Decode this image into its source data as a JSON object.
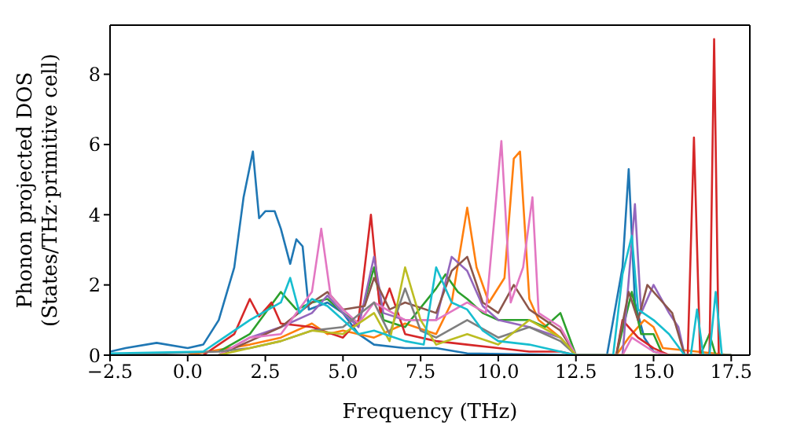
{
  "chart_data": {
    "type": "line",
    "xlabel": "Frequency (THz)",
    "ylabel": "Phonon projected DOS\n(States/THz·primitive cell)",
    "xlim": [
      -2.5,
      18.1
    ],
    "xticks": [
      {
        "value": -2.5,
        "label": "−2.5"
      },
      {
        "value": 0,
        "label": "0.0"
      },
      {
        "value": 2.5,
        "label": "2.5"
      },
      {
        "value": 5,
        "label": "5.0"
      },
      {
        "value": 7.5,
        "label": "7.5"
      },
      {
        "value": 10,
        "label": "10.0"
      },
      {
        "value": 12.5,
        "label": "12.5"
      },
      {
        "value": 15,
        "label": "15.0"
      },
      {
        "value": 17.5,
        "label": "17.5"
      }
    ],
    "ylim": [
      0,
      9.4
    ],
    "yticks": [
      0,
      2,
      4,
      6,
      8
    ],
    "marker": "none",
    "line_style": "solid",
    "series": [
      {
        "color": "#1f77b4",
        "x": [
          -2.5,
          -2,
          -1,
          0,
          0.5,
          1,
          1.5,
          1.8,
          2.1,
          2.3,
          2.5,
          2.8,
          3,
          3.3,
          3.5,
          3.7,
          3.9,
          4.5,
          5,
          5.5,
          6,
          7,
          8,
          9,
          12.5,
          13.5,
          13.8,
          14,
          14.2,
          14.4,
          14.7,
          15,
          15.5,
          17.5
        ],
        "values": [
          0.1,
          0.2,
          0.35,
          0.2,
          0.3,
          1.0,
          2.5,
          4.5,
          5.8,
          3.9,
          4.1,
          4.1,
          3.6,
          2.6,
          3.3,
          3.1,
          1.3,
          1.5,
          1.2,
          0.6,
          0.3,
          0.2,
          0.2,
          0.05,
          0,
          0,
          1.5,
          2.5,
          5.3,
          1.5,
          0.5,
          0.1,
          0,
          0
        ]
      },
      {
        "color": "#ff7f0e",
        "x": [
          0,
          2,
          3,
          4,
          4.5,
          5,
          6,
          7,
          8,
          8.5,
          9,
          9.3,
          9.7,
          10.2,
          10.5,
          10.7,
          11,
          11.3,
          12,
          12.5,
          13.8,
          14.2,
          14.7,
          15,
          15.3,
          17.5
        ],
        "values": [
          0,
          0.3,
          0.5,
          0.9,
          0.6,
          0.7,
          0.5,
          0.9,
          0.6,
          1.5,
          4.2,
          2.5,
          1.5,
          2.2,
          5.6,
          5.8,
          1.6,
          1.0,
          0.5,
          0,
          0,
          0.5,
          1.0,
          0.8,
          0.2,
          0
        ]
      },
      {
        "color": "#2ca02c",
        "x": [
          1,
          2,
          3,
          3.5,
          4,
          4.5,
          5,
          5.5,
          6,
          6.3,
          7,
          8,
          8.3,
          8.7,
          9,
          9.5,
          10,
          11,
          11.5,
          12,
          12.5,
          13.8,
          14.3,
          14.6,
          15,
          15.3,
          16.5,
          16.8,
          17
        ],
        "values": [
          0.1,
          0.6,
          1.8,
          1.3,
          1.5,
          1.6,
          1.2,
          0.9,
          2.5,
          1.0,
          0.8,
          1.9,
          2.3,
          1.8,
          1.6,
          1.2,
          1.0,
          1.0,
          0.8,
          1.2,
          0,
          0,
          1.8,
          0.6,
          0.6,
          0,
          0,
          0.6,
          0
        ]
      },
      {
        "color": "#d62728",
        "x": [
          0.5,
          1.5,
          2,
          2.3,
          2.7,
          3,
          4,
          5,
          5.5,
          5.9,
          6.2,
          6.5,
          7,
          8,
          9,
          10,
          11,
          12,
          12.5,
          13.8,
          14,
          14.5,
          15,
          15.5,
          16.1,
          16.3,
          16.5,
          16.8,
          16.95,
          17.1,
          17.5
        ],
        "values": [
          0,
          0.6,
          1.6,
          1.1,
          1.5,
          0.9,
          0.8,
          0.5,
          1.0,
          4.0,
          1.2,
          1.9,
          0.6,
          0.4,
          0.3,
          0.2,
          0.1,
          0.1,
          0,
          0,
          1.0,
          0.5,
          0.2,
          0,
          0,
          6.2,
          0,
          0,
          9.0,
          0,
          0
        ]
      },
      {
        "color": "#9467bd",
        "x": [
          1,
          2,
          3,
          4,
          4.5,
          5,
          5.5,
          6,
          6.3,
          7,
          8,
          8.5,
          9,
          9.5,
          10,
          11,
          12,
          12.5,
          14,
          14.4,
          14.6,
          15,
          15.5,
          15.8,
          16,
          17.5
        ],
        "values": [
          0,
          0.5,
          0.8,
          1.2,
          1.7,
          1.2,
          0.8,
          2.8,
          1.2,
          1.0,
          1.0,
          2.8,
          2.4,
          1.4,
          1.0,
          0.8,
          0.5,
          0,
          0,
          4.3,
          1.2,
          2.0,
          1.2,
          0.8,
          0,
          0
        ]
      },
      {
        "color": "#8c564b",
        "x": [
          1,
          2,
          3,
          4,
          4.5,
          5,
          5.7,
          6,
          6.5,
          7,
          8,
          8.5,
          9,
          9.5,
          10,
          10.5,
          11,
          12,
          12.5,
          13.8,
          14.2,
          14.5,
          14.8,
          15.2,
          15.6,
          16,
          17.5
        ],
        "values": [
          0,
          0.4,
          0.8,
          1.5,
          1.8,
          1.3,
          1.4,
          2.2,
          1.3,
          1.5,
          1.2,
          2.4,
          2.8,
          1.5,
          1.2,
          2.0,
          1.3,
          0.7,
          0,
          0,
          1.8,
          1.0,
          2.0,
          1.6,
          1.2,
          0,
          0
        ]
      },
      {
        "color": "#e377c2",
        "x": [
          1,
          2,
          3,
          4,
          4.3,
          4.6,
          5,
          5.5,
          6,
          7,
          8,
          9,
          9.6,
          10.1,
          10.4,
          10.8,
          11.1,
          11.3,
          12,
          12.5,
          14,
          14.3,
          15,
          15.5,
          17
        ],
        "values": [
          0,
          0.5,
          0.6,
          1.8,
          3.6,
          1.7,
          1.3,
          0.9,
          1.5,
          1.0,
          1.0,
          1.5,
          1.2,
          6.1,
          1.5,
          2.5,
          4.5,
          1.2,
          0.8,
          0,
          0,
          0.5,
          0.1,
          0,
          0
        ]
      },
      {
        "color": "#7f7f7f",
        "x": [
          -2.5,
          1,
          2,
          3,
          4,
          5,
          6,
          6.5,
          7,
          7.5,
          8,
          9,
          10,
          11,
          12,
          12.5,
          17.5
        ],
        "values": [
          0,
          0.1,
          0.2,
          0.4,
          0.7,
          0.8,
          1.5,
          0.6,
          1.9,
          0.7,
          0.5,
          1.0,
          0.5,
          0.8,
          0.4,
          0,
          0
        ]
      },
      {
        "color": "#bcbd22",
        "x": [
          1,
          2,
          3,
          4,
          5,
          6,
          6.5,
          7,
          7.5,
          8,
          9,
          10,
          11,
          12,
          12.5,
          17.5
        ],
        "values": [
          0,
          0.2,
          0.4,
          0.7,
          0.6,
          1.2,
          0.4,
          2.5,
          1.0,
          0.3,
          0.6,
          0.3,
          1.0,
          0.5,
          0,
          0
        ]
      },
      {
        "color": "#17becf",
        "x": [
          -2.5,
          0.5,
          1,
          2,
          3,
          3.3,
          3.6,
          4,
          4.5,
          5,
          5.5,
          6,
          7,
          7.6,
          8,
          8.5,
          9,
          9.5,
          10,
          11,
          12,
          12.5,
          13.7,
          14,
          14.3,
          14.5,
          15,
          15.5,
          16,
          16.2,
          16.4,
          16.6,
          16.8,
          17,
          17.2,
          17.5
        ],
        "values": [
          0.05,
          0.1,
          0.4,
          1.0,
          1.5,
          2.2,
          1.2,
          1.6,
          1.4,
          1.0,
          0.6,
          0.7,
          0.4,
          0.3,
          2.5,
          1.5,
          1.3,
          0.7,
          0.4,
          0.3,
          0.1,
          0,
          0,
          2.3,
          3.4,
          1.3,
          1.0,
          0.6,
          0,
          0,
          1.3,
          0,
          0,
          1.8,
          0,
          0
        ]
      }
    ]
  }
}
